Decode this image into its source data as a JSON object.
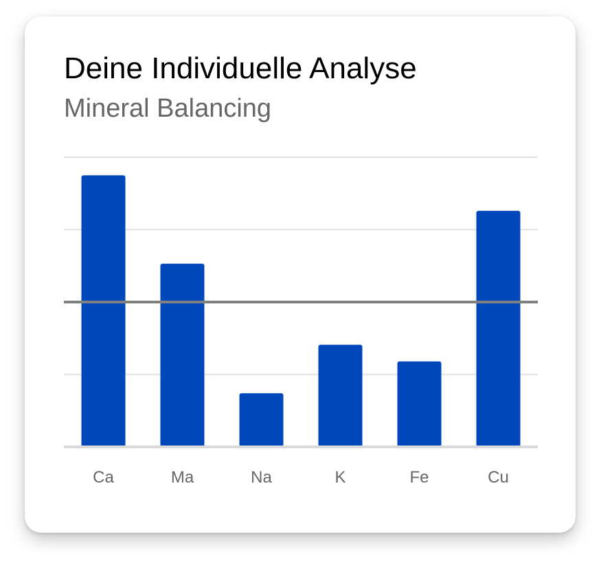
{
  "card": {
    "title": "Deine Individuelle Analyse",
    "subtitle": "Mineral Balancing"
  },
  "chart_data": {
    "type": "bar",
    "title": "Deine Individuelle Analyse",
    "subtitle": "Mineral Balancing",
    "categories": [
      "Ca",
      "Ma",
      "Na",
      "K",
      "Fe",
      "Cu"
    ],
    "values": [
      3.75,
      2.53,
      0.74,
      1.41,
      1.18,
      3.26
    ],
    "ylim": [
      0,
      4
    ],
    "reference_line": 2,
    "grid": true,
    "y_tick_labels_shown": false,
    "colors": {
      "bar": "#0047BB",
      "grid": "#E0E0E0",
      "reference_line": "#808080",
      "baseline": "#D9D9D9"
    }
  }
}
